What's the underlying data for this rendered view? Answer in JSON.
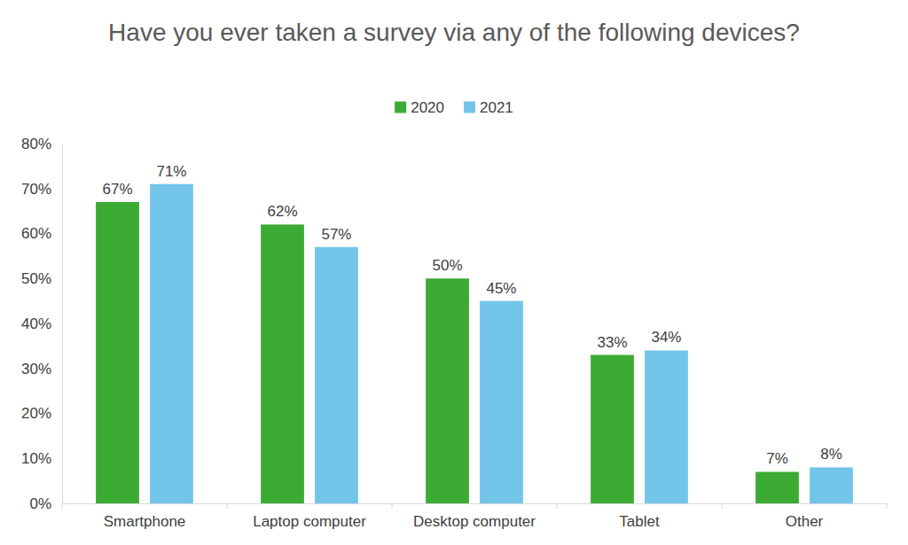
{
  "chart_data": {
    "type": "bar",
    "title": "Have you ever taken a survey via any of the following devices?",
    "categories": [
      "Smartphone",
      "Laptop computer",
      "Desktop computer",
      "Tablet",
      "Other"
    ],
    "series": [
      {
        "name": "2020",
        "color": "#3cab34",
        "values": [
          67,
          62,
          50,
          33,
          7
        ],
        "value_labels": [
          "67%",
          "62%",
          "50%",
          "33%",
          "7%"
        ]
      },
      {
        "name": "2021",
        "color": "#72c5e8",
        "values": [
          71,
          57,
          45,
          34,
          8
        ],
        "value_labels": [
          "71%",
          "57%",
          "45%",
          "34%",
          "8%"
        ]
      }
    ],
    "ylim": [
      0,
      80
    ],
    "yticks": [
      {
        "value": 0,
        "label": "0%"
      },
      {
        "value": 10,
        "label": "10%"
      },
      {
        "value": 20,
        "label": "20%"
      },
      {
        "value": 30,
        "label": "30%"
      },
      {
        "value": 40,
        "label": "40%"
      },
      {
        "value": 50,
        "label": "50%"
      },
      {
        "value": 60,
        "label": "60%"
      },
      {
        "value": 70,
        "label": "70%"
      },
      {
        "value": 80,
        "label": "80%"
      }
    ],
    "grid": false,
    "legend": "top",
    "data_labels": true
  }
}
